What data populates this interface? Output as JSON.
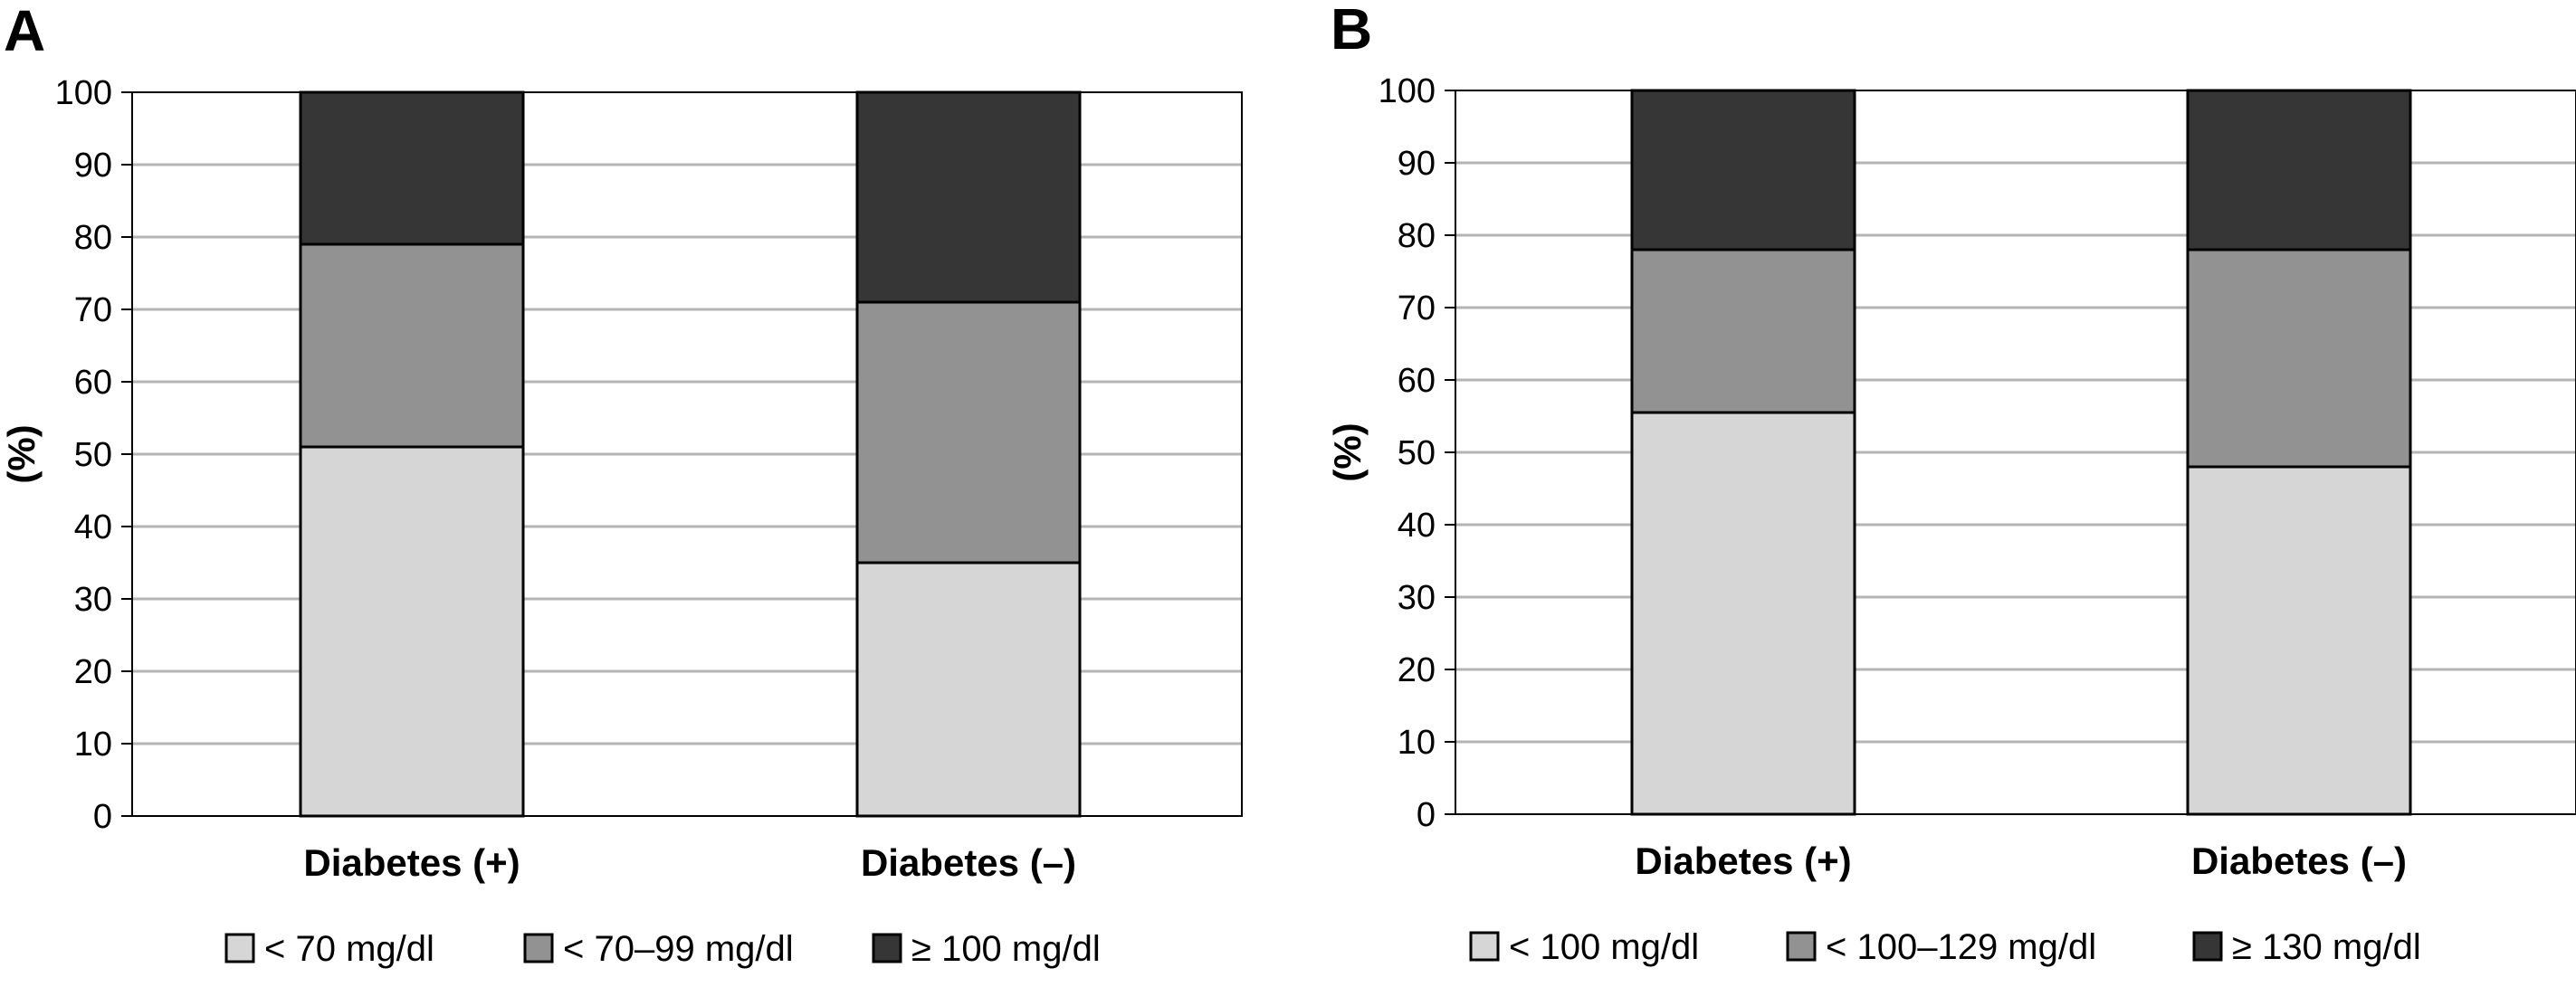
{
  "chart_data": [
    {
      "type": "bar",
      "stacked": true,
      "panel": "A",
      "categories": [
        "Diabetes (+)",
        "Diabetes (–)"
      ],
      "series": [
        {
          "name": "< 70 mg/dl",
          "values": [
            51,
            35
          ],
          "color": "#d6d6d6"
        },
        {
          "name": "< 70–99 mg/dl",
          "values": [
            28,
            36
          ],
          "color": "#929292"
        },
        {
          "name": "≥ 100 mg/dl",
          "values": [
            21,
            29
          ],
          "color": "#363636"
        }
      ],
      "ylabel": "(%)",
      "ylim": [
        0,
        100
      ],
      "yticks": [
        "0",
        "10",
        "20",
        "30",
        "40",
        "50",
        "60",
        "70",
        "80",
        "90",
        "100"
      ],
      "grid": true,
      "legend": "bottom"
    },
    {
      "type": "bar",
      "stacked": true,
      "panel": "B",
      "categories": [
        "Diabetes (+)",
        "Diabetes (–)"
      ],
      "series": [
        {
          "name": "< 100 mg/dl",
          "values": [
            55.5,
            48
          ],
          "color": "#d6d6d6"
        },
        {
          "name": "< 100–129 mg/dl",
          "values": [
            22.5,
            30
          ],
          "color": "#929292"
        },
        {
          "name": "≥ 130 mg/dl",
          "values": [
            22,
            22
          ],
          "color": "#363636"
        }
      ],
      "ylabel": "(%)",
      "ylim": [
        0,
        100
      ],
      "yticks": [
        "0",
        "10",
        "20",
        "30",
        "40",
        "50",
        "60",
        "70",
        "80",
        "90",
        "100"
      ],
      "grid": true,
      "legend": "bottom"
    }
  ]
}
